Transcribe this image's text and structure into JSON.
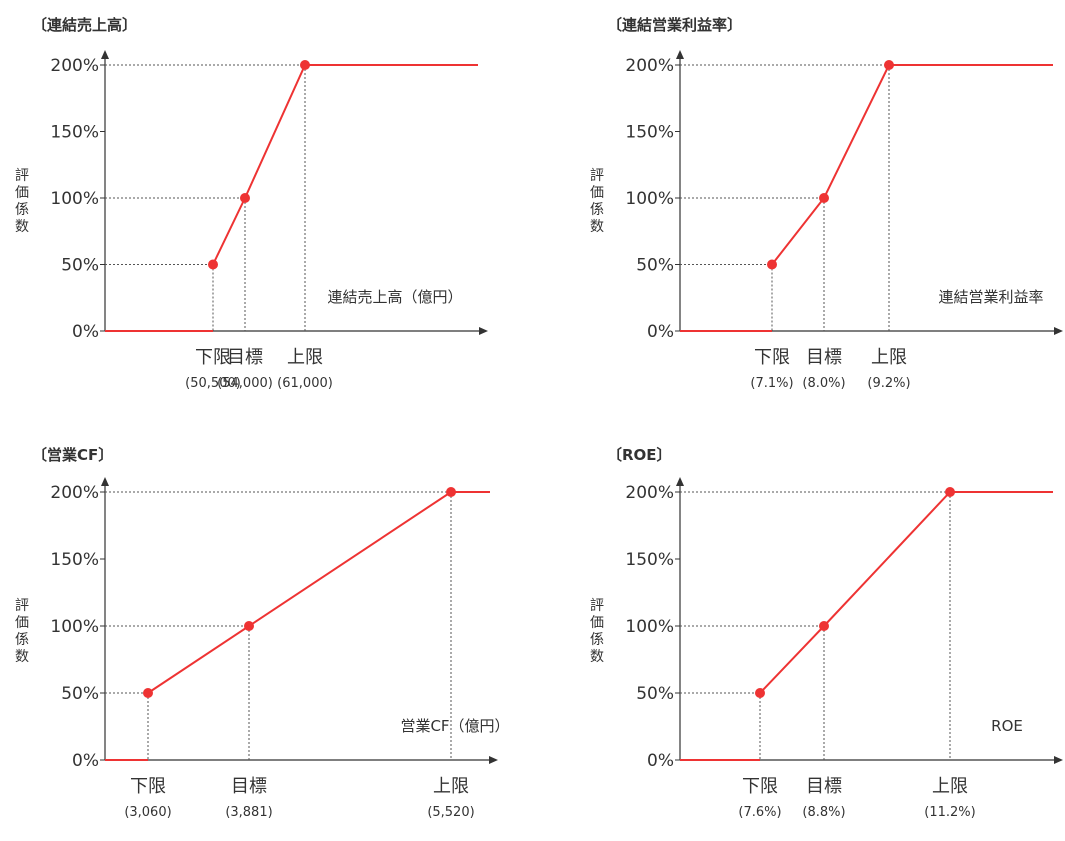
{
  "chart_data": [
    {
      "type": "line",
      "title": "〔連結売上高〕",
      "ylabel": "評価係数",
      "xlabel": "連結売上高（億円）",
      "y_ticks": [
        "0%",
        "50%",
        "100%",
        "150%",
        "200%"
      ],
      "ylim": [
        0,
        200
      ],
      "grid": false,
      "x_markers": [
        {
          "label": "下限",
          "value_label": "(50,500)",
          "x": 50500,
          "y": 50
        },
        {
          "label": "目標",
          "value_label": "(54,000)",
          "x": 54000,
          "y": 100
        },
        {
          "label": "上限",
          "value_label": "(61,000)",
          "x": 61000,
          "y": 200
        }
      ]
    },
    {
      "type": "line",
      "title": "〔連結営業利益率〕",
      "ylabel": "評価係数",
      "xlabel": "連結営業利益率",
      "y_ticks": [
        "0%",
        "50%",
        "100%",
        "150%",
        "200%"
      ],
      "ylim": [
        0,
        200
      ],
      "grid": false,
      "x_markers": [
        {
          "label": "下限",
          "value_label": "(7.1%)",
          "x": 7.1,
          "y": 50
        },
        {
          "label": "目標",
          "value_label": "(8.0%)",
          "x": 8.0,
          "y": 100
        },
        {
          "label": "上限",
          "value_label": "(9.2%)",
          "x": 9.2,
          "y": 200
        }
      ]
    },
    {
      "type": "line",
      "title": "〔営業CF〕",
      "ylabel": "評価係数",
      "xlabel": "営業CF（億円）",
      "y_ticks": [
        "0%",
        "50%",
        "100%",
        "150%",
        "200%"
      ],
      "ylim": [
        0,
        200
      ],
      "grid": false,
      "x_markers": [
        {
          "label": "下限",
          "value_label": "(3,060)",
          "x": 3060,
          "y": 50
        },
        {
          "label": "目標",
          "value_label": "(3,881)",
          "x": 3881,
          "y": 100
        },
        {
          "label": "上限",
          "value_label": "(5,520)",
          "x": 5520,
          "y": 200
        }
      ]
    },
    {
      "type": "line",
      "title": "〔ROE〕",
      "ylabel": "評価係数",
      "xlabel": "ROE",
      "y_ticks": [
        "0%",
        "50%",
        "100%",
        "150%",
        "200%"
      ],
      "ylim": [
        0,
        200
      ],
      "grid": false,
      "x_markers": [
        {
          "label": "下限",
          "value_label": "(7.6%)",
          "x": 7.6,
          "y": 50
        },
        {
          "label": "目標",
          "value_label": "(8.8%)",
          "x": 8.8,
          "y": 100
        },
        {
          "label": "上限",
          "value_label": "(11.2%)",
          "x": 11.2,
          "y": 200
        }
      ]
    }
  ],
  "colors": {
    "line": "#ee3333",
    "axis": "#333333",
    "guide": "#555555",
    "text": "#333333"
  }
}
